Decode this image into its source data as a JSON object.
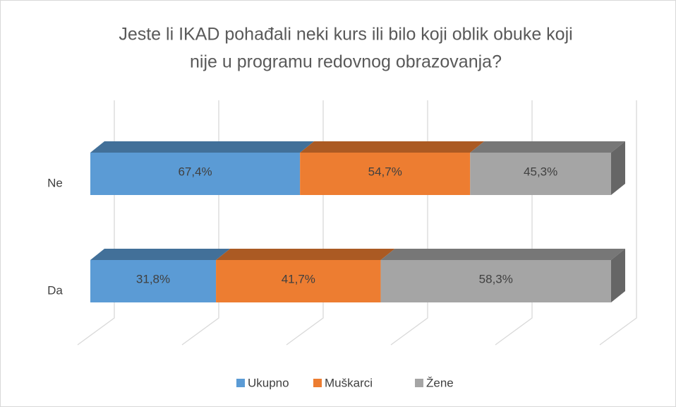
{
  "chart_data": {
    "type": "bar",
    "orientation": "horizontal",
    "stacking": "percent",
    "title_lines": [
      "Jeste li IKAD pohađali neki kurs ili bilo koji oblik obuke koji",
      "nije u programu redovnog obrazovanja?"
    ],
    "categories": [
      "Ne",
      "Da"
    ],
    "series": [
      {
        "name": "Ukupno",
        "color": "#5b9bd5",
        "values": [
          67.4,
          31.8
        ],
        "value_labels": [
          "67,4%",
          "31,8%"
        ]
      },
      {
        "name": "Muškarci",
        "color": "#ed7d31",
        "values": [
          54.7,
          41.7
        ],
        "value_labels": [
          "54,7%",
          "41,7%"
        ]
      },
      {
        "name": "Žene",
        "color": "#a5a5a5",
        "values": [
          45.3,
          58.3
        ],
        "value_labels": [
          "45,3%",
          "58,3%"
        ]
      }
    ],
    "xlim": [
      0,
      100
    ],
    "xticks": [
      0,
      20,
      40,
      60,
      80,
      100
    ],
    "grid": true,
    "legend": "bottom"
  }
}
